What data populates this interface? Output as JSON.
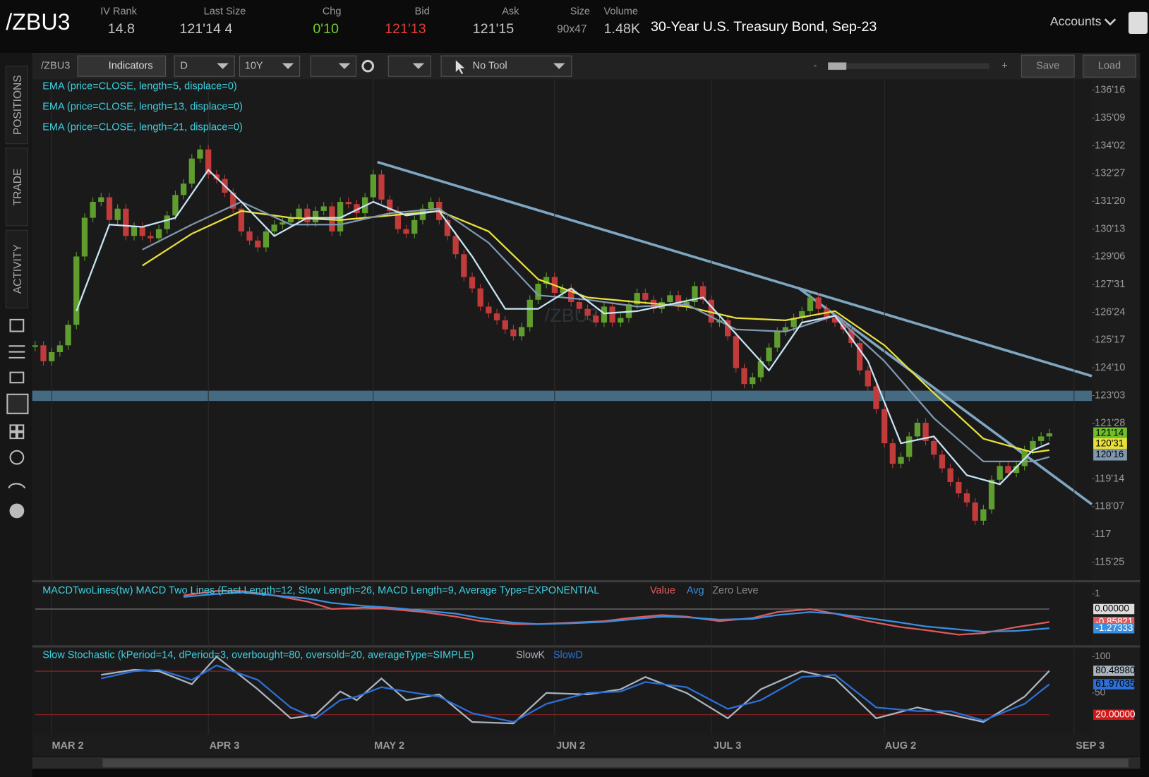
{
  "header": {
    "symbol": "/ZBU3",
    "fields": [
      {
        "label": "IV Rank",
        "value": "14.8"
      },
      {
        "label": "Last Size",
        "value": "121'14 4"
      },
      {
        "label": "Chg",
        "value": "0'10"
      },
      {
        "label": "Bid",
        "value": "121'13"
      },
      {
        "label": "Ask",
        "value": "121'15"
      },
      {
        "label": "Size",
        "value": "90x47"
      },
      {
        "label": "Volume",
        "value": "1.48K"
      }
    ],
    "description": "30-Year U.S. Treasury Bond, Sep-23",
    "accounts": "Accounts"
  },
  "toolbar": {
    "symbol": "/ZBU3",
    "indicators": "Indicators",
    "aggregation": "D",
    "period": "10Y",
    "tool": "No Tool",
    "minus": "-",
    "plus": "+",
    "save": "Save",
    "load": "Load"
  },
  "side_tabs": [
    "POSITIONS",
    "TRADE",
    "ACTIVITY"
  ],
  "chart_data": [
    {
      "type": "candlestick",
      "watermark": "/ZBU3",
      "studies": [
        "EMA (price=CLOSE, length=5, displace=0)",
        "EMA (price=CLOSE, length=13, displace=0)",
        "EMA (price=CLOSE, length=21, displace=0)"
      ],
      "xlim": [
        0,
        123
      ],
      "xticks": [
        {
          "value": 2,
          "label": "MAR 2"
        },
        {
          "value": 21,
          "label": "APR 3"
        },
        {
          "value": 41,
          "label": "MAY 2"
        },
        {
          "value": 63,
          "label": "JUN 2"
        },
        {
          "value": 82,
          "label": "JUL 3"
        },
        {
          "value": 103,
          "label": "AUG 2"
        },
        {
          "value": 126,
          "label": "SEP 3"
        }
      ],
      "ylim": [
        115.04,
        136.98
      ],
      "yticks": [
        {
          "value": 136.5,
          "label": "136'16"
        },
        {
          "value": 135.28125,
          "label": "135'09"
        },
        {
          "value": 134.0625,
          "label": "134'02"
        },
        {
          "value": 132.84375,
          "label": "132'27"
        },
        {
          "value": 131.625,
          "label": "131'20"
        },
        {
          "value": 130.40625,
          "label": "130'13"
        },
        {
          "value": 129.1875,
          "label": "129'06"
        },
        {
          "value": 127.96875,
          "label": "127'31"
        },
        {
          "value": 126.75,
          "label": "126'24"
        },
        {
          "value": 125.53125,
          "label": "125'17"
        },
        {
          "value": 124.3125,
          "label": "124'10"
        },
        {
          "value": 123.09375,
          "label": "123'03"
        },
        {
          "value": 121.875,
          "label": "121'28"
        },
        {
          "value": 119.4375,
          "label": "119'14"
        },
        {
          "value": 118.21875,
          "label": "118'07"
        },
        117,
        {
          "value": 115.78125,
          "label": "115'25"
        }
      ],
      "up_color": "#5f9e2e",
      "down_color": "#c23b3b",
      "close": [
        125.3,
        124.6,
        125.0,
        125.3,
        126.2,
        129.2,
        130.9,
        131.6,
        131.8,
        130.8,
        131.3,
        130.1,
        130.5,
        130.1,
        130.0,
        130.4,
        131.0,
        131.9,
        132.4,
        133.5,
        133.9,
        132.8,
        132.6,
        132.0,
        131.3,
        130.3,
        129.9,
        129.6,
        130.3,
        130.6,
        130.7,
        130.9,
        131.3,
        130.7,
        131.2,
        131.4,
        130.3,
        131.6,
        131.5,
        131.1,
        131.8,
        132.8,
        131.7,
        131.2,
        130.4,
        130.2,
        130.8,
        131.3,
        131.6,
        130.8,
        130.1,
        129.3,
        128.3,
        127.8,
        127.0,
        126.7,
        126.4,
        126.0,
        125.7,
        126.1,
        127.3,
        128.0,
        128.3,
        127.6,
        127.8,
        127.2,
        126.9,
        126.6,
        126.3,
        127.0,
        126.3,
        126.5,
        127.1,
        127.6,
        127.3,
        126.9,
        127.2,
        127.5,
        127.0,
        127.2,
        127.9,
        127.3,
        126.3,
        126.4,
        125.7,
        124.3,
        123.6,
        123.9,
        124.6,
        125.2,
        125.9,
        126.1,
        126.5,
        126.8,
        127.4,
        126.9,
        126.5,
        126.3,
        126.0,
        125.4,
        124.2,
        123.5,
        122.5,
        121.0,
        120.1,
        120.4,
        121.3,
        121.9,
        121.1,
        120.5,
        119.9,
        119.3,
        118.8,
        118.4,
        117.6,
        118.1,
        119.4,
        120.0,
        119.7,
        120.0,
        120.7,
        121.1,
        121.3,
        121.4375
      ],
      "series": [
        {
          "name": "EMA5",
          "color": "#c8e4f4",
          "x": [
            5,
            9,
            13,
            17,
            21,
            25,
            29,
            33,
            37,
            41,
            45,
            49,
            53,
            57,
            61,
            65,
            69,
            73,
            77,
            81,
            85,
            89,
            93,
            97,
            101,
            105,
            109,
            113,
            117,
            121,
            123
          ],
          "values": [
            126.8,
            130.6,
            130.5,
            130.9,
            133.0,
            131.6,
            130.1,
            130.9,
            130.9,
            131.6,
            131.0,
            131.2,
            129.2,
            126.9,
            126.9,
            127.8,
            126.7,
            126.8,
            127.1,
            127.4,
            125.8,
            124.2,
            126.3,
            126.6,
            124.6,
            121.0,
            121.3,
            119.6,
            119.2,
            120.7,
            121.0
          ]
        },
        {
          "name": "EMA13",
          "color": "#7f98b0",
          "x": [
            13,
            19,
            25,
            31,
            37,
            43,
            49,
            55,
            61,
            67,
            73,
            79,
            85,
            91,
            97,
            103,
            109,
            115,
            121,
            123
          ],
          "values": [
            129.5,
            130.6,
            131.6,
            130.6,
            130.6,
            131.1,
            131.3,
            129.8,
            127.5,
            127.3,
            127.0,
            127.1,
            126.0,
            125.9,
            126.6,
            124.6,
            122.1,
            120.2,
            120.2,
            120.4
          ]
        },
        {
          "name": "EMA21",
          "color": "#e8e03a",
          "x": [
            13,
            19,
            25,
            31,
            37,
            43,
            49,
            55,
            61,
            67,
            73,
            79,
            85,
            91,
            97,
            103,
            109,
            115,
            121,
            123
          ],
          "values": [
            128.8,
            130.2,
            131.2,
            130.9,
            130.8,
            131.0,
            131.2,
            130.3,
            128.2,
            127.4,
            127.2,
            127.0,
            126.5,
            126.4,
            126.8,
            125.3,
            123.2,
            121.2,
            120.6,
            120.7
          ]
        }
      ],
      "badges": [
        {
          "value": 121.4375,
          "label": "121'14",
          "color": "#6fbf2a"
        },
        {
          "value": 120.96875,
          "label": "120'31",
          "color": "#e8e03a"
        },
        {
          "value": 120.5,
          "label": "120'16",
          "color": "#7f98b0"
        }
      ]
    },
    {
      "type": "line",
      "title": "MACDTwoLines(tw) MACD Two Lines (Fast Length=12, Slow Length=26, MACD Length=9, Average Type=EXPONENTIAL",
      "legend": [
        "Value",
        "Avg",
        "Zero Leve"
      ],
      "xlim": [
        0,
        123
      ],
      "ylim": [
        -2.38,
        1.65
      ],
      "yticks": [
        1,
        {
          "value": 0,
          "label": "0.00000"
        }
      ],
      "series": [
        {
          "name": "Value",
          "color": "#e05a5a",
          "x": [
            18,
            22,
            25,
            29,
            33,
            36,
            40,
            43,
            47,
            51,
            54,
            58,
            61,
            65,
            69,
            72,
            76,
            79,
            83,
            87,
            90,
            94,
            97,
            101,
            105,
            108,
            112,
            115,
            119,
            123
          ],
          "values": [
            0.9,
            1.2,
            1.2,
            0.9,
            0.5,
            0.0,
            0.1,
            0.0,
            -0.2,
            -0.5,
            -0.8,
            -1.0,
            -1.0,
            -0.9,
            -0.8,
            -0.6,
            -0.4,
            -0.5,
            -0.8,
            -0.6,
            -0.2,
            0.0,
            -0.3,
            -0.8,
            -1.2,
            -1.4,
            -1.7,
            -1.6,
            -1.2,
            -0.85821
          ],
          "value_label": "-0.85821"
        },
        {
          "name": "Avg",
          "color": "#3a8ee0",
          "x": [
            18,
            22,
            25,
            29,
            33,
            36,
            40,
            43,
            47,
            51,
            54,
            58,
            61,
            65,
            69,
            72,
            76,
            79,
            83,
            87,
            90,
            94,
            97,
            101,
            105,
            108,
            112,
            115,
            119,
            123
          ],
          "values": [
            0.8,
            1.0,
            1.1,
            0.9,
            0.7,
            0.4,
            0.2,
            0.1,
            -0.1,
            -0.3,
            -0.6,
            -0.9,
            -1.0,
            -0.95,
            -0.85,
            -0.7,
            -0.5,
            -0.55,
            -0.7,
            -0.65,
            -0.4,
            -0.2,
            -0.3,
            -0.6,
            -0.9,
            -1.15,
            -1.35,
            -1.5,
            -1.45,
            -1.27333
          ],
          "value_label": "-1.27333"
        }
      ]
    },
    {
      "type": "line",
      "title": "Slow Stochastic (kPeriod=14, dPeriod=3, overbought=80, oversold=20, averageType=SIMPLE)",
      "legend": [
        "SlowK",
        "SlowD"
      ],
      "xlim": [
        0,
        123
      ],
      "ylim": [
        0,
        100
      ],
      "yticks": [
        100,
        50
      ],
      "bands": [
        80,
        {
          "value": 20,
          "label": "20.00000"
        }
      ],
      "series": [
        {
          "name": "SlowK",
          "color": "#a9b4bf",
          "x": [
            8,
            12,
            15,
            19,
            22,
            27,
            31,
            34,
            37,
            39,
            42,
            45,
            49,
            53,
            58,
            62,
            67,
            71,
            74,
            79,
            84,
            88,
            93,
            97,
            102,
            107,
            111,
            115,
            120,
            123
          ],
          "values": [
            75,
            82,
            80,
            62,
            100,
            55,
            15,
            20,
            52,
            40,
            70,
            40,
            48,
            10,
            8,
            50,
            48,
            55,
            72,
            50,
            15,
            55,
            80,
            70,
            15,
            30,
            20,
            10,
            45,
            80.4898
          ],
          "value_label": "80.48980"
        },
        {
          "name": "SlowD",
          "color": "#2c6fd6",
          "x": [
            8,
            12,
            15,
            19,
            22,
            27,
            31,
            34,
            37,
            39,
            42,
            45,
            49,
            53,
            58,
            62,
            67,
            71,
            74,
            79,
            84,
            88,
            93,
            97,
            102,
            107,
            111,
            115,
            120,
            123
          ],
          "values": [
            70,
            80,
            82,
            68,
            88,
            68,
            30,
            15,
            40,
            45,
            58,
            52,
            45,
            22,
            10,
            35,
            50,
            52,
            65,
            58,
            28,
            40,
            72,
            75,
            30,
            25,
            25,
            12,
            35,
            61.97035
          ],
          "value_label": "61.97035"
        }
      ]
    }
  ]
}
